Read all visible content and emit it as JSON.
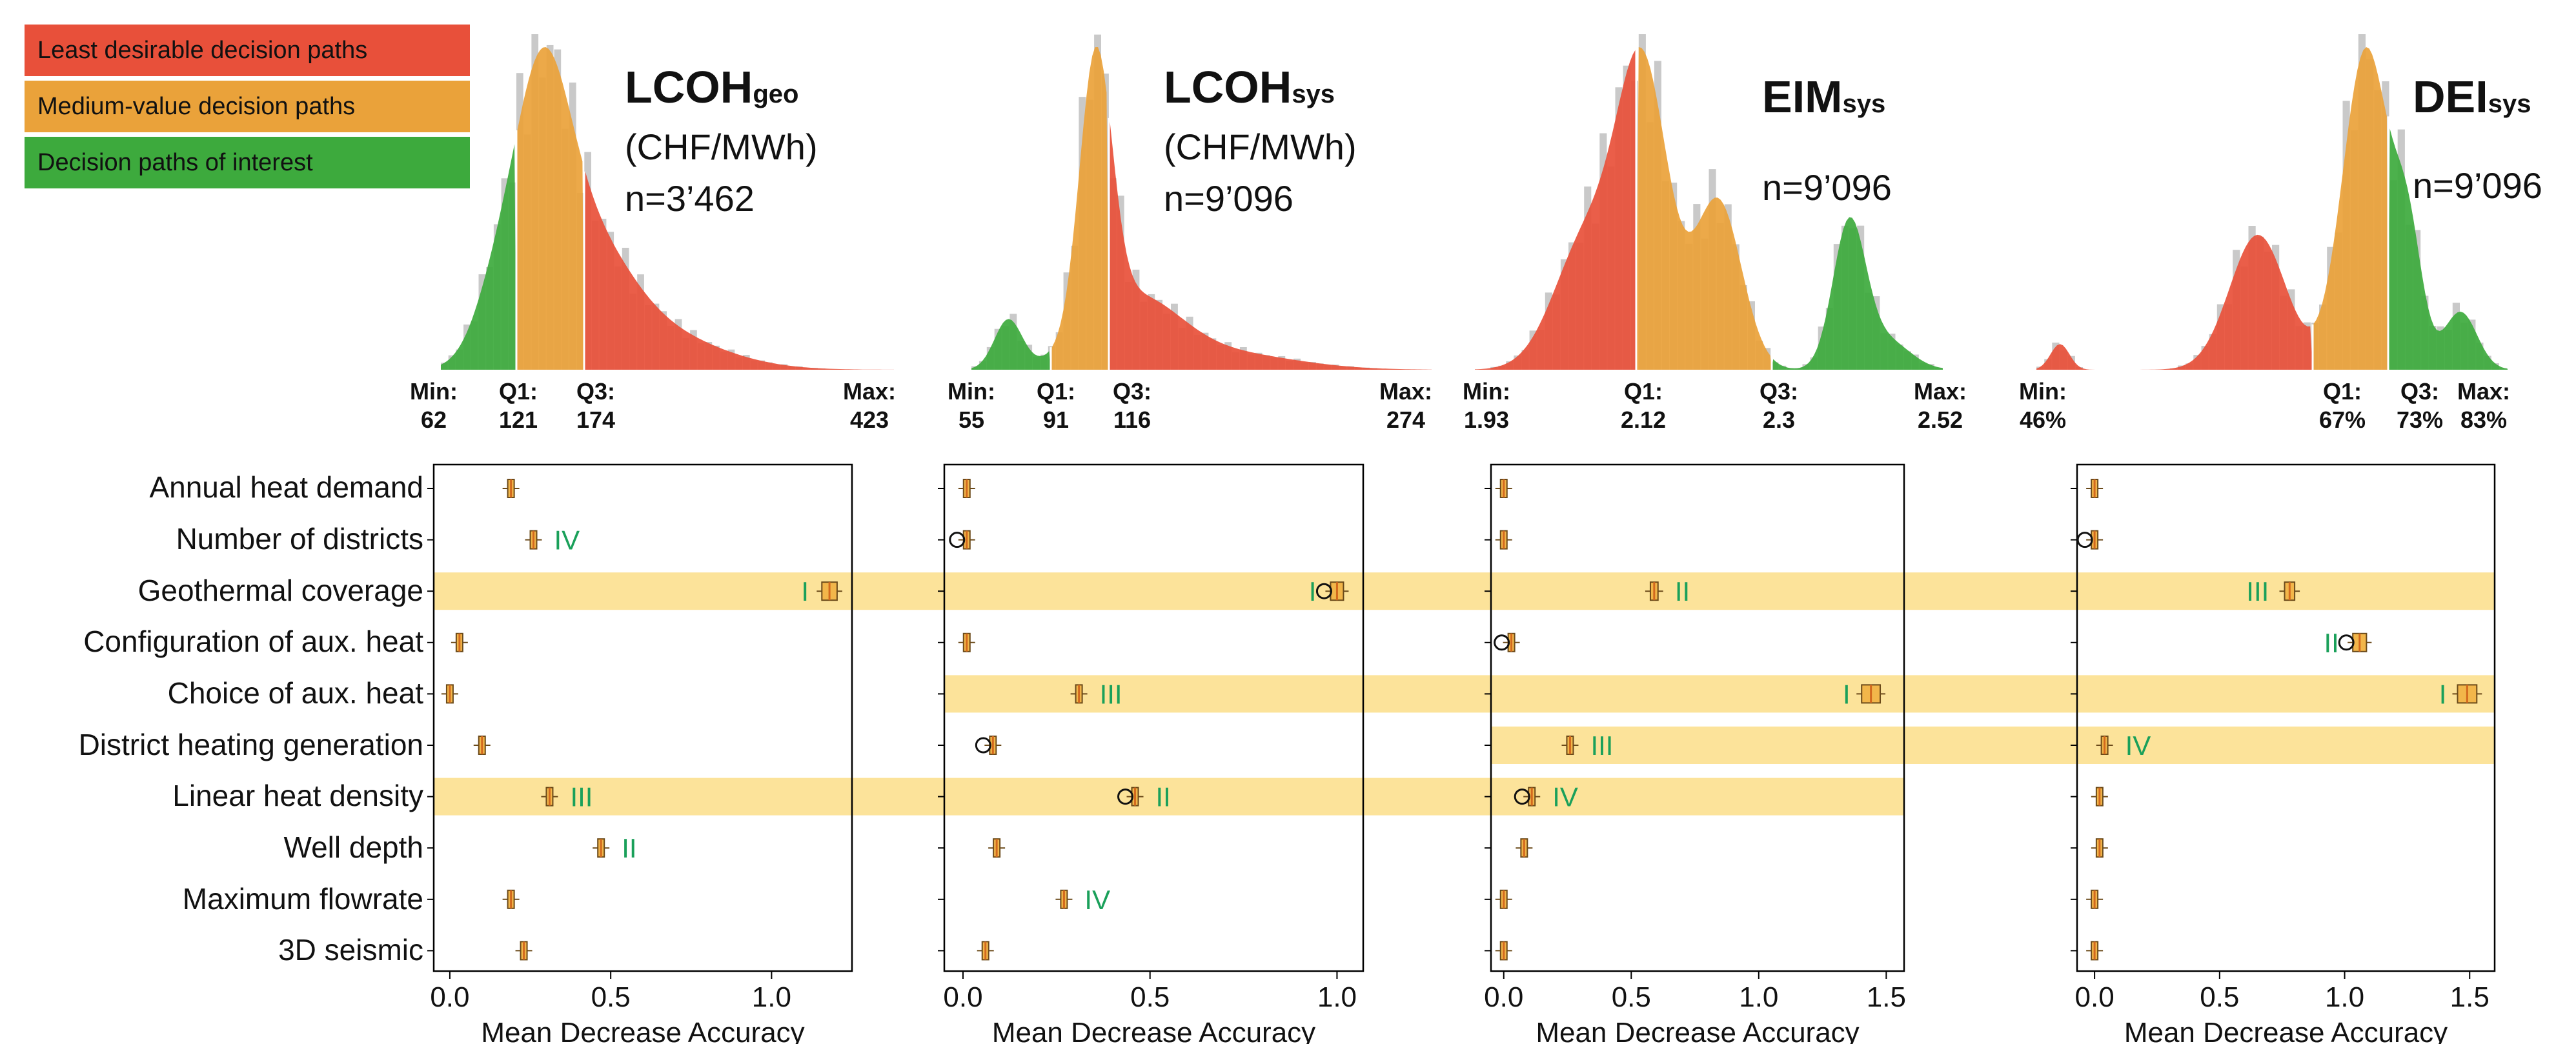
{
  "legend": {
    "items": [
      {
        "label": "Least desirable decision paths",
        "color": "#e8503a"
      },
      {
        "label": "Medium-value decision paths",
        "color": "#eaa23a"
      },
      {
        "label": "Decision paths  of interest",
        "color": "#3daa3d"
      }
    ]
  },
  "colors": {
    "red": "#e8503a",
    "orange": "#eaa23a",
    "green": "#3daa3d",
    "band": "#fce39a",
    "rank": "#1aa05a",
    "box": "#f2b64a",
    "grey_hist": "#c9c9c9"
  },
  "features": [
    "Annual heat demand",
    "Number of districts",
    "Geothermal coverage",
    "Configuration of aux. heat",
    "Choice of aux. heat",
    "District heating generation",
    "Linear heat density",
    "Well depth",
    "Maximum flowrate",
    "3D seismic"
  ],
  "panels": [
    {
      "title_main": "LCOH",
      "title_sub": "geo",
      "unit": "(CHF/MWh)",
      "n": "n=3’462",
      "stats": [
        {
          "k": "Min:",
          "v": "62"
        },
        {
          "k": "Q1:",
          "v": "121"
        },
        {
          "k": "Q3:",
          "v": "174"
        },
        {
          "k": "Max:",
          "v": "423"
        }
      ],
      "left_color": "green",
      "right_color": "red",
      "xlabel": "Mean Decrease Accuracy"
    },
    {
      "title_main": "LCOH",
      "title_sub": "sys",
      "unit": "(CHF/MWh)",
      "n": "n=9’096",
      "stats": [
        {
          "k": "Min:",
          "v": "55"
        },
        {
          "k": "Q1:",
          "v": "91"
        },
        {
          "k": "Q3:",
          "v": "116"
        },
        {
          "k": "Max:",
          "v": "274"
        }
      ],
      "left_color": "green",
      "right_color": "red",
      "xlabel": "Mean Decrease Accuracy"
    },
    {
      "title_main": "EIM",
      "title_sub": "sys",
      "unit": "",
      "n": "n=9’096",
      "stats": [
        {
          "k": "Min:",
          "v": "1.93"
        },
        {
          "k": "Q1:",
          "v": "2.12"
        },
        {
          "k": "Q3:",
          "v": "2.3"
        },
        {
          "k": "Max:",
          "v": "2.52"
        }
      ],
      "left_color": "red",
      "right_color": "green",
      "xlabel": "Mean Decrease Accuracy"
    },
    {
      "title_main": "DEI",
      "title_sub": "sys",
      "unit": "",
      "n": "n=9’096",
      "stats": [
        {
          "k": "Min:",
          "v": "46%"
        },
        {
          "k": "Q1:",
          "v": "67%"
        },
        {
          "k": "Q3:",
          "v": "73%"
        },
        {
          "k": "Max:",
          "v": "83%"
        }
      ],
      "left_color": "red",
      "right_color": "green",
      "xlabel": "Mean Decrease Accuracy"
    }
  ],
  "chart_data": [
    {
      "type": "scatter",
      "xlabel": "Mean Decrease Accuracy",
      "xlim": [
        -0.05,
        1.25
      ],
      "xticks": [
        {
          "v": 0.0,
          "label": "0.0"
        },
        {
          "v": 0.5,
          "label": "0.5"
        },
        {
          "v": 1.0,
          "label": "1.0"
        }
      ],
      "values": [
        0.19,
        0.26,
        1.18,
        0.03,
        0.0,
        0.1,
        0.31,
        0.47,
        0.19,
        0.23
      ],
      "outlier": [
        false,
        false,
        false,
        false,
        false,
        false,
        false,
        false,
        false,
        false
      ],
      "highlight": [
        2,
        6
      ],
      "ranks": [
        {
          "row": 1,
          "label": "IV",
          "side": "right"
        },
        {
          "row": 2,
          "label": "I",
          "side": "left"
        },
        {
          "row": 6,
          "label": "III",
          "side": "right"
        },
        {
          "row": 7,
          "label": "II",
          "side": "right"
        }
      ]
    },
    {
      "type": "scatter",
      "xlabel": "Mean Decrease Accuracy",
      "xlim": [
        -0.05,
        1.07
      ],
      "xticks": [
        {
          "v": 0.0,
          "label": "0.0"
        },
        {
          "v": 0.5,
          "label": "0.5"
        },
        {
          "v": 1.0,
          "label": "1.0"
        }
      ],
      "values": [
        0.01,
        0.01,
        1.0,
        0.01,
        0.31,
        0.08,
        0.46,
        0.09,
        0.27,
        0.06
      ],
      "outlier": [
        false,
        true,
        true,
        false,
        false,
        true,
        true,
        false,
        false,
        false
      ],
      "highlight": [
        4
      ],
      "ranks": [
        {
          "row": 2,
          "label": "I",
          "side": "left"
        },
        {
          "row": 4,
          "label": "III",
          "side": "right"
        },
        {
          "row": 6,
          "label": "II",
          "side": "right"
        },
        {
          "row": 8,
          "label": "IV",
          "side": "right"
        }
      ]
    },
    {
      "type": "scatter",
      "xlabel": "Mean Decrease Accuracy",
      "xlim": [
        -0.05,
        1.57
      ],
      "xticks": [
        {
          "v": 0.0,
          "label": "0.0"
        },
        {
          "v": 0.5,
          "label": "0.5"
        },
        {
          "v": 1.0,
          "label": "1.0"
        },
        {
          "v": 1.5,
          "label": "1.5"
        }
      ],
      "values": [
        0.0,
        0.0,
        0.59,
        0.03,
        1.44,
        0.26,
        0.11,
        0.08,
        0.0,
        0.0
      ],
      "outlier": [
        false,
        false,
        false,
        true,
        false,
        false,
        true,
        false,
        false,
        false
      ],
      "highlight": [
        5
      ],
      "ranks": [
        {
          "row": 2,
          "label": "II",
          "side": "right"
        },
        {
          "row": 4,
          "label": "I",
          "side": "left"
        },
        {
          "row": 5,
          "label": "III",
          "side": "right"
        },
        {
          "row": 6,
          "label": "IV",
          "side": "right"
        }
      ]
    },
    {
      "type": "scatter",
      "xlabel": "Mean Decrease Accuracy",
      "xlim": [
        -0.07,
        1.6
      ],
      "xticks": [
        {
          "v": 0.0,
          "label": "0.0"
        },
        {
          "v": 0.5,
          "label": "0.5"
        },
        {
          "v": 1.0,
          "label": "1.0"
        },
        {
          "v": 1.5,
          "label": "1.5"
        }
      ],
      "values": [
        0.0,
        0.0,
        0.78,
        1.06,
        1.49,
        0.04,
        0.02,
        0.02,
        0.0,
        0.0
      ],
      "outlier": [
        false,
        true,
        false,
        true,
        false,
        false,
        false,
        false,
        false,
        false
      ],
      "highlight": [],
      "ranks": [
        {
          "row": 2,
          "label": "III",
          "side": "left"
        },
        {
          "row": 3,
          "label": "II",
          "side": "left"
        },
        {
          "row": 4,
          "label": "I",
          "side": "left"
        },
        {
          "row": 5,
          "label": "IV",
          "side": "right"
        }
      ]
    }
  ]
}
